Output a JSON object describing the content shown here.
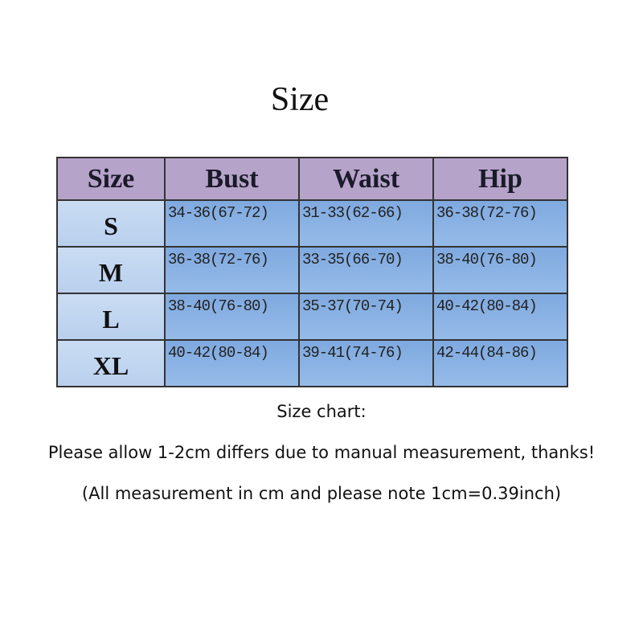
{
  "title": "Size",
  "table": {
    "headers": [
      "Size",
      "Bust",
      "Waist",
      "Hip"
    ],
    "rows": [
      {
        "size": "S",
        "bust": "34-36(67-72)",
        "waist": "31-33(62-66)",
        "hip": "36-38(72-76)"
      },
      {
        "size": "M",
        "bust": "36-38(72-76)",
        "waist": "33-35(66-70)",
        "hip": "38-40(76-80)"
      },
      {
        "size": "L",
        "bust": "38-40(76-80)",
        "waist": "35-37(70-74)",
        "hip": "40-42(80-84)"
      },
      {
        "size": "XL",
        "bust": "40-42(80-84)",
        "waist": "39-41(74-76)",
        "hip": "42-44(84-86)"
      }
    ],
    "colors": {
      "header": "#b6a3c9",
      "size_column": "#c9dcf2",
      "cells": "#8db4e2"
    }
  },
  "notes": {
    "heading": "Size chart:",
    "line1": "Please allow 1-2cm differs due to manual measurement, thanks!",
    "line2": "(All measurement in cm and please note 1cm=0.39inch)"
  }
}
